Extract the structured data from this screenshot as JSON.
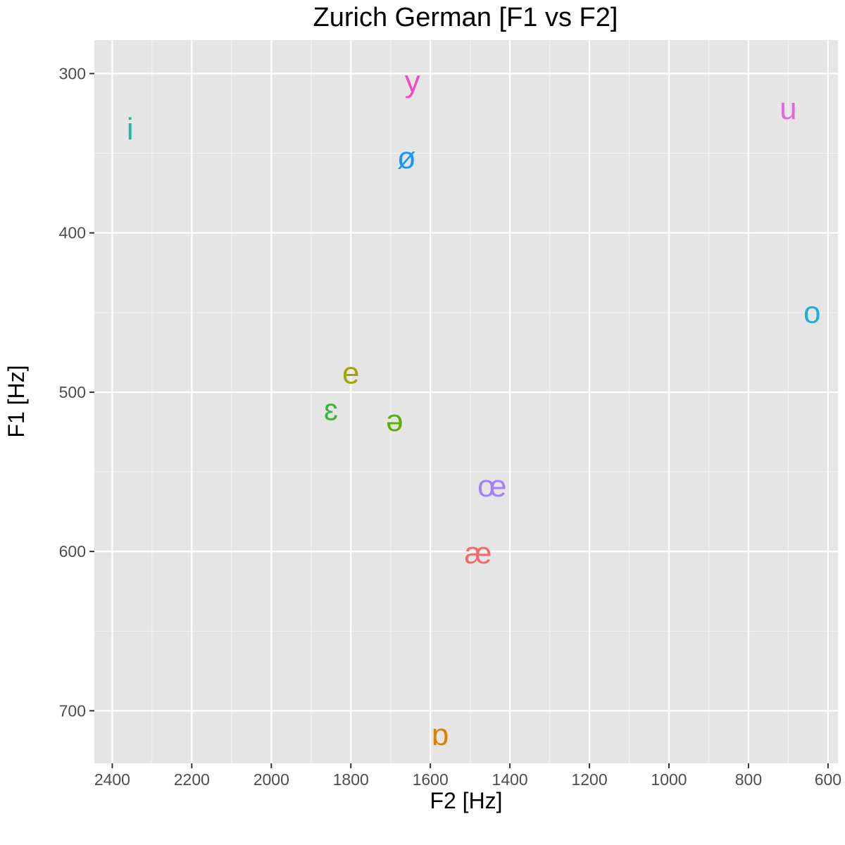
{
  "chart_data": {
    "type": "scatter",
    "title": "Zurich German [F1 vs F2]",
    "xlabel": "F2 [Hz]",
    "ylabel": "F1 [Hz]",
    "x_reversed": true,
    "y_reversed": true,
    "xlim": [
      2445,
      575
    ],
    "ylim": [
      279,
      733
    ],
    "x_ticks": [
      2400,
      2200,
      2000,
      1800,
      1600,
      1400,
      1200,
      1000,
      800,
      600
    ],
    "y_ticks": [
      300,
      400,
      500,
      600,
      700
    ],
    "grid": true,
    "legend": "none",
    "points": [
      {
        "label": "i",
        "x": 2355,
        "y": 335,
        "color": "#1FB99E"
      },
      {
        "label": "y",
        "x": 1645,
        "y": 305,
        "color": "#F14CBF"
      },
      {
        "label": "u",
        "x": 700,
        "y": 322,
        "color": "#E367E2"
      },
      {
        "label": "ø",
        "x": 1660,
        "y": 353,
        "color": "#1B97F9"
      },
      {
        "label": "o",
        "x": 640,
        "y": 450,
        "color": "#1EAFD8"
      },
      {
        "label": "e",
        "x": 1800,
        "y": 488,
        "color": "#A3A500"
      },
      {
        "label": "ɛ",
        "x": 1850,
        "y": 511,
        "color": "#3DB53D"
      },
      {
        "label": "ə",
        "x": 1690,
        "y": 518,
        "color": "#59B100"
      },
      {
        "label": "œ",
        "x": 1445,
        "y": 559,
        "color": "#A57FFA"
      },
      {
        "label": "æ",
        "x": 1480,
        "y": 601,
        "color": "#F06A6A"
      },
      {
        "label": "ɒ",
        "x": 1575,
        "y": 715,
        "color": "#DF8100"
      }
    ]
  }
}
